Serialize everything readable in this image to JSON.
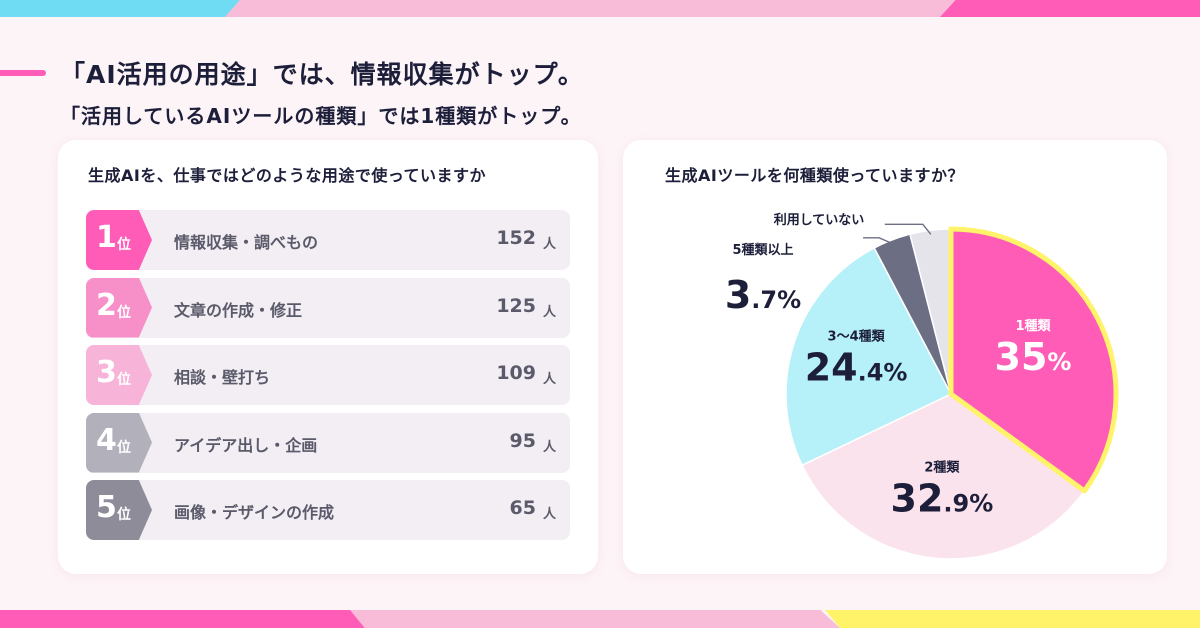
{
  "headline": {
    "line1": "「AI活用の用途」では、情報収集がトップ。",
    "line2": "「活用しているAIツールの種類」では1種類がトップ。"
  },
  "left_card": {
    "title": "生成AIを、仕事ではどのような用途で使っていますか",
    "rank_suffix": "位",
    "unit": "人"
  },
  "right_card": {
    "title": "生成AIツールを何種類使っていますか？"
  },
  "chart_data": [
    {
      "type": "table",
      "title": "生成AIを、仕事ではどのような用途で使っていますか",
      "rows": [
        {
          "rank": "1",
          "label": "情報収集・調べもの",
          "value": 152,
          "unit": "人",
          "color": "#ff5cb8"
        },
        {
          "rank": "2",
          "label": "文章の作成・修正",
          "value": 125,
          "unit": "人",
          "color": "#f78fc9"
        },
        {
          "rank": "3",
          "label": "相談・壁打ち",
          "value": 109,
          "unit": "人",
          "color": "#f7b3d8"
        },
        {
          "rank": "4",
          "label": "アイデア出し・企画",
          "value": 95,
          "unit": "人",
          "color": "#b2b0ba"
        },
        {
          "rank": "5",
          "label": "画像・デザインの作成",
          "value": 65,
          "unit": "人",
          "color": "#8e8c99"
        }
      ]
    },
    {
      "type": "pie",
      "title": "生成AIツールを何種類使っていますか？",
      "slices": [
        {
          "label": "1種類",
          "value": 35,
          "display_int": "35",
          "display_dec": "",
          "color": "#ff5cb8",
          "text_color": "#ffffff",
          "highlight": "#fff36a"
        },
        {
          "label": "2種類",
          "value": 32.9,
          "display_int": "32",
          "display_dec": ".9",
          "color": "#fbe3ee",
          "text_color": "#1d1f3a"
        },
        {
          "label": "3〜4種類",
          "value": 24.4,
          "display_int": "24",
          "display_dec": ".4",
          "color": "#b6f0f8",
          "text_color": "#1d1f3a"
        },
        {
          "label": "5種類以上",
          "value": 3.7,
          "display_int": "3",
          "display_dec": ".7",
          "color": "#6c6f84",
          "text_color": "#1d1f3a"
        },
        {
          "label": "利用していない",
          "value": 4.0,
          "display_int": "",
          "display_dec": "",
          "color": "#e4e4ea",
          "text_color": "#1d1f3a"
        }
      ]
    }
  ]
}
